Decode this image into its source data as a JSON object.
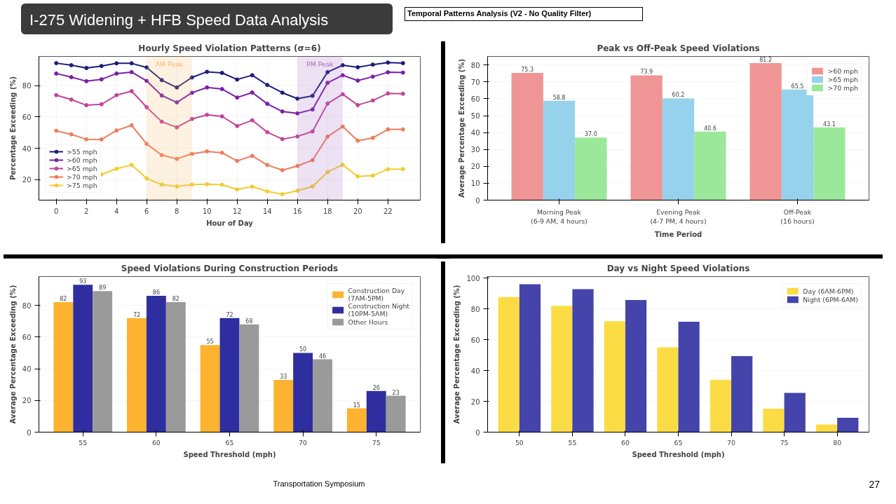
{
  "chart_data": [
    {
      "type": "other",
      "title": "I-275 Widening + HFB Speed Data Analysis",
      "subtitle": "Temporal Patterns Analysis (V2 - No Quality Filter)",
      "annotations": [
        "Transportation Symposium",
        "27"
      ]
    },
    {
      "type": "line",
      "title": "Hourly Speed Violation Patterns (σ=6)",
      "xlabel": "Hour of Day",
      "ylabel": "Percentage Exceeding (%)",
      "x": [
        0,
        1,
        2,
        3,
        4,
        5,
        6,
        7,
        8,
        9,
        10,
        11,
        12,
        13,
        14,
        15,
        16,
        17,
        18,
        19,
        20,
        21,
        22,
        23
      ],
      "xlim": [
        -1.15,
        24.15
      ],
      "ylim": [
        7,
        98.6
      ],
      "xticks": [
        0,
        2,
        4,
        6,
        8,
        10,
        12,
        14,
        16,
        18,
        20,
        22
      ],
      "yticks": [
        20,
        40,
        60,
        80
      ],
      "grid": true,
      "legend": "bottom left",
      "marker": "circle",
      "line_style": "solid",
      "bands": [
        {
          "axis": "x",
          "from": 6,
          "to": 9,
          "label": "AM Peak",
          "color": "#f5b968"
        },
        {
          "axis": "x",
          "from": 16,
          "to": 19,
          "label": "PM Peak",
          "color": "#a56cc1"
        }
      ],
      "series": [
        {
          "name": ">55 mph",
          "color": "#1c1c78",
          "values": [
            94.3,
            93.0,
            91.2,
            92.5,
            94.2,
            94.2,
            91.6,
            83.5,
            78.8,
            85.2,
            88.8,
            88.1,
            83.9,
            86.6,
            80.4,
            75.5,
            71.7,
            73.5,
            88.6,
            93.0,
            91.7,
            93.4,
            94.7,
            94.3
          ]
        },
        {
          "name": ">60 mph",
          "color": "#7a1fa8",
          "values": [
            87.7,
            85.4,
            82.8,
            84.0,
            87.7,
            88.6,
            83.0,
            73.7,
            69.3,
            75.4,
            78.8,
            77.8,
            72.4,
            75.6,
            68.4,
            63.5,
            62.3,
            64.8,
            81.8,
            86.6,
            83.2,
            85.7,
            88.5,
            88.3
          ]
        },
        {
          "name": ">65 mph",
          "color": "#c2459a",
          "values": [
            73.9,
            71.1,
            67.5,
            68.1,
            73.9,
            76.5,
            66.2,
            57.0,
            53.4,
            58.7,
            61.4,
            60.4,
            54.3,
            57.9,
            50.3,
            45.9,
            47.6,
            50.8,
            68.6,
            74.5,
            67.6,
            70.5,
            75.0,
            74.8
          ]
        },
        {
          "name": ">70 mph",
          "color": "#ee7d5e",
          "values": [
            51.2,
            48.9,
            45.8,
            45.7,
            51.4,
            54.7,
            42.8,
            35.7,
            33.3,
            36.5,
            38.1,
            37.2,
            32.0,
            35.2,
            29.4,
            26.1,
            28.8,
            32.5,
            47.5,
            53.9,
            44.9,
            46.7,
            52.1,
            52.1
          ]
        },
        {
          "name": ">75 mph",
          "color": "#f2cc30",
          "values": [
            null,
            null,
            null,
            23.4,
            27.0,
            29.4,
            20.8,
            16.9,
            15.7,
            16.9,
            17.2,
            16.8,
            13.8,
            15.6,
            12.6,
            10.8,
            13.0,
            15.7,
            24.9,
            29.5,
            22.1,
            22.6,
            26.7,
            26.8
          ]
        }
      ]
    },
    {
      "type": "bar",
      "title": "Peak vs Off-Peak Speed Violations",
      "xlabel": "Time Period",
      "ylabel": "Average Percentage Exceeding (%)",
      "categories": [
        "Morning Peak\n(6-9 AM, 4 hours)",
        "Evening Peak\n(4-7 PM, 4 hours)",
        "Off-Peak\n(16 hours)"
      ],
      "ylim": [
        0,
        85.1
      ],
      "yticks": [
        0,
        10,
        20,
        30,
        40,
        50,
        60,
        70,
        80
      ],
      "grid": "y",
      "legend": "top right",
      "series": [
        {
          "name": ">60 mph",
          "color": "#f09595",
          "values": [
            75.3,
            73.9,
            81.2
          ],
          "value_labels": [
            "75.3",
            "73.9",
            "81.2"
          ]
        },
        {
          "name": ">65 mph",
          "color": "#96d2ec",
          "values": [
            58.8,
            60.2,
            65.5
          ],
          "value_labels": [
            "58.8",
            "60.2",
            "65.5"
          ]
        },
        {
          "name": ">70 mph",
          "color": "#9be89b",
          "values": [
            37,
            40.6,
            43.1
          ],
          "value_labels": [
            "37.0",
            "40.6",
            "43.1"
          ]
        }
      ]
    },
    {
      "type": "bar",
      "title": "Speed Violations During Construction Periods",
      "xlabel": "Speed Threshold (mph)",
      "ylabel": "Average Percentage Exceeding (%)",
      "categories": [
        "55",
        "60",
        "65",
        "70",
        "75"
      ],
      "ylim": [
        0,
        98.2
      ],
      "yticks": [
        0,
        20,
        40,
        60,
        80
      ],
      "grid": "y",
      "legend": "top right",
      "data_labels": true,
      "series": [
        {
          "name": "Construction Day\n(7AM-5PM)",
          "color": "#fdb32f",
          "values": [
            82,
            72,
            55,
            33,
            15
          ]
        },
        {
          "name": "Construction Night\n(10PM-5AM)",
          "color": "#2e2ea0",
          "values": [
            93,
            86,
            72,
            50,
            26
          ]
        },
        {
          "name": "Other Hours",
          "color": "#9a9a9a",
          "values": [
            89,
            82,
            68,
            46,
            23
          ]
        }
      ]
    },
    {
      "type": "bar",
      "title": "Day vs Night Speed Violations",
      "xlabel": "Speed Threshold (mph)",
      "ylabel": "Average Percentage Exceeding (%)",
      "categories": [
        "50",
        "55",
        "60",
        "65",
        "70",
        "75",
        "80"
      ],
      "ylim": [
        0,
        101
      ],
      "yticks": [
        0,
        20,
        40,
        60,
        80,
        100
      ],
      "grid": "y",
      "legend": "top right",
      "series": [
        {
          "name": "Day (6AM-6PM)",
          "color": "#fbdc45",
          "values": [
            87.7,
            82.0,
            72.0,
            55.1,
            34.0,
            15.2,
            5.0
          ]
        },
        {
          "name": "Night (6PM-6AM)",
          "color": "#4444aa",
          "values": [
            96.0,
            92.8,
            85.8,
            71.7,
            49.4,
            25.5,
            9.3
          ]
        }
      ]
    }
  ]
}
